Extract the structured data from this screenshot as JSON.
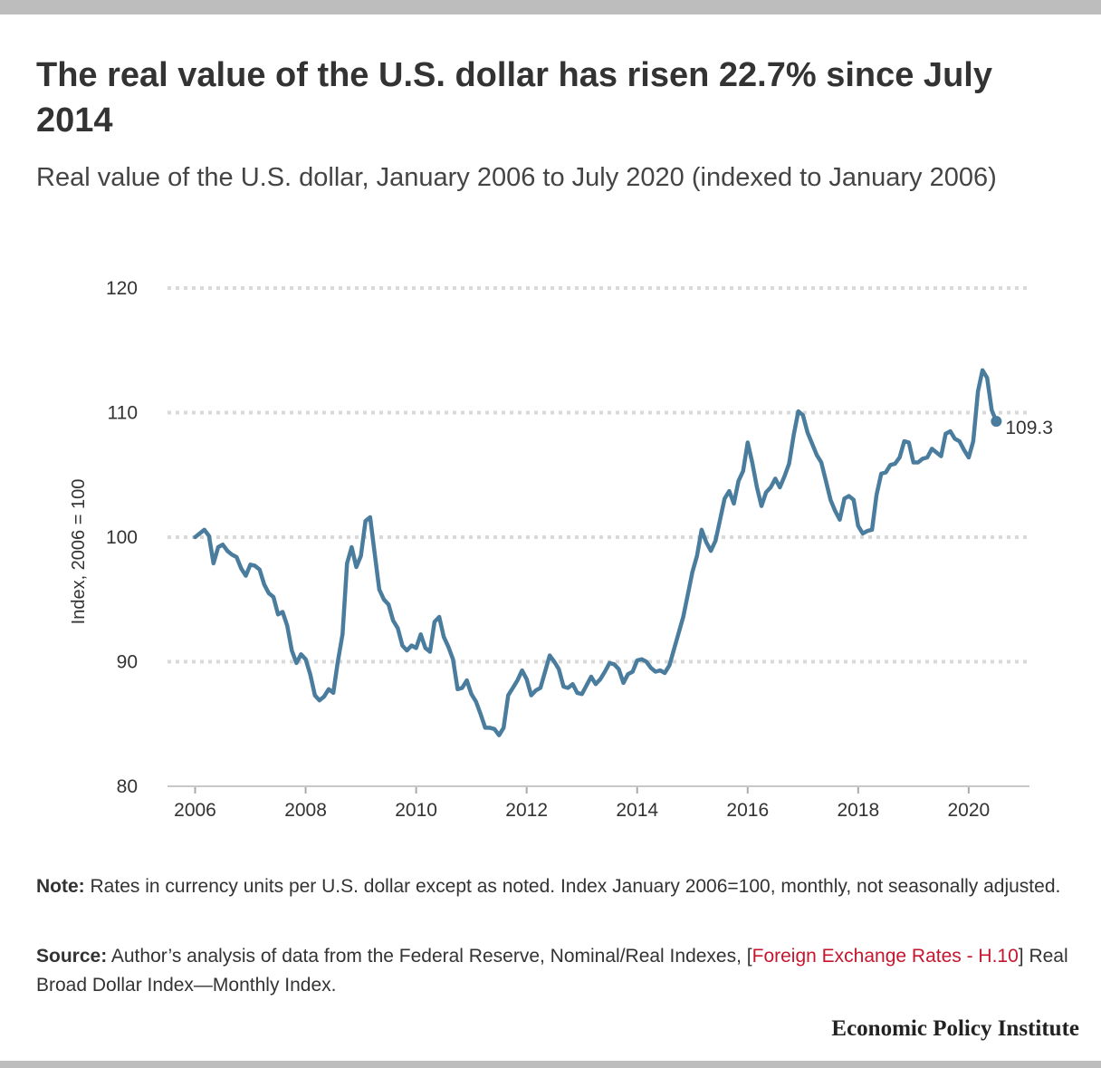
{
  "title": "The real value of the U.S. dollar has risen 22.7% since July 2014",
  "subtitle": "Real value of the U.S. dollar, January 2006 to July 2020 (indexed to January 2006)",
  "note": {
    "label": "Note:",
    "text": "Rates in currency units per U.S. dollar except as noted. Index January 2006=100, monthly, not seasonally adjusted."
  },
  "source": {
    "label": "Source:",
    "text_before": "Author’s analysis of data from the Federal Reserve, Nominal/Real Indexes, [",
    "link": "Foreign Exchange Rates - H.10",
    "text_after": "] Real Broad Dollar Index—Monthly Index."
  },
  "logo": "Economic Policy Institute",
  "colors": {
    "line": "#4a7c9e",
    "grid": "#d9d9d9",
    "link": "#c5162e"
  },
  "chart_data": {
    "type": "line",
    "ylabel": "Index, 2006 = 100",
    "xlabel": "",
    "ylim": [
      80,
      120
    ],
    "xlim": [
      2005.5,
      2021.1
    ],
    "yticks": [
      80,
      90,
      100,
      110,
      120
    ],
    "xticks": [
      2006,
      2008,
      2010,
      2012,
      2014,
      2016,
      2018,
      2020
    ],
    "grid": true,
    "end_label": "109.3",
    "series": [
      {
        "x": [
          2006.0,
          2006.083,
          2006.167,
          2006.25,
          2006.333,
          2006.417,
          2006.5,
          2006.583,
          2006.667,
          2006.75,
          2006.833,
          2006.917,
          2007.0,
          2007.083,
          2007.167,
          2007.25,
          2007.333,
          2007.417,
          2007.5,
          2007.583,
          2007.667,
          2007.75,
          2007.833,
          2007.917,
          2008.0,
          2008.083,
          2008.167,
          2008.25,
          2008.333,
          2008.417,
          2008.5,
          2008.583,
          2008.667,
          2008.75,
          2008.833,
          2008.917,
          2009.0,
          2009.083,
          2009.167,
          2009.25,
          2009.333,
          2009.417,
          2009.5,
          2009.583,
          2009.667,
          2009.75,
          2009.833,
          2009.917,
          2010.0,
          2010.083,
          2010.167,
          2010.25,
          2010.333,
          2010.417,
          2010.5,
          2010.583,
          2010.667,
          2010.75,
          2010.833,
          2010.917,
          2011.0,
          2011.083,
          2011.167,
          2011.25,
          2011.333,
          2011.417,
          2011.5,
          2011.583,
          2011.667,
          2011.75,
          2011.833,
          2011.917,
          2012.0,
          2012.083,
          2012.167,
          2012.25,
          2012.333,
          2012.417,
          2012.5,
          2012.583,
          2012.667,
          2012.75,
          2012.833,
          2012.917,
          2013.0,
          2013.083,
          2013.167,
          2013.25,
          2013.333,
          2013.417,
          2013.5,
          2013.583,
          2013.667,
          2013.75,
          2013.833,
          2013.917,
          2014.0,
          2014.083,
          2014.167,
          2014.25,
          2014.333,
          2014.417,
          2014.5,
          2014.583,
          2014.667,
          2014.75,
          2014.833,
          2014.917,
          2015.0,
          2015.083,
          2015.167,
          2015.25,
          2015.333,
          2015.417,
          2015.5,
          2015.583,
          2015.667,
          2015.75,
          2015.833,
          2015.917,
          2016.0,
          2016.083,
          2016.167,
          2016.25,
          2016.333,
          2016.417,
          2016.5,
          2016.583,
          2016.667,
          2016.75,
          2016.833,
          2016.917,
          2017.0,
          2017.083,
          2017.167,
          2017.25,
          2017.333,
          2017.417,
          2017.5,
          2017.583,
          2017.667,
          2017.75,
          2017.833,
          2017.917,
          2018.0,
          2018.083,
          2018.167,
          2018.25,
          2018.333,
          2018.417,
          2018.5,
          2018.583,
          2018.667,
          2018.75,
          2018.833,
          2018.917,
          2019.0,
          2019.083,
          2019.167,
          2019.25,
          2019.333,
          2019.417,
          2019.5,
          2019.583,
          2019.667,
          2019.75,
          2019.833,
          2019.917,
          2020.0,
          2020.083,
          2020.167,
          2020.25,
          2020.333,
          2020.417,
          2020.5
        ],
        "values": [
          100.0,
          100.3,
          100.6,
          100.1,
          97.9,
          99.2,
          99.4,
          98.9,
          98.6,
          98.4,
          97.5,
          96.9,
          97.8,
          97.7,
          97.4,
          96.2,
          95.5,
          95.2,
          93.8,
          94.0,
          92.9,
          90.9,
          89.9,
          90.6,
          90.2,
          89.0,
          87.3,
          86.9,
          87.2,
          87.8,
          87.5,
          90.0,
          92.2,
          97.9,
          99.2,
          97.6,
          98.5,
          101.3,
          101.6,
          98.7,
          95.8,
          95.0,
          94.6,
          93.3,
          92.7,
          91.3,
          90.9,
          91.3,
          91.1,
          92.2,
          91.1,
          90.8,
          93.2,
          93.6,
          92.0,
          91.2,
          90.2,
          87.8,
          87.9,
          88.5,
          87.4,
          86.8,
          85.8,
          84.7,
          84.7,
          84.6,
          84.1,
          84.7,
          87.3,
          87.9,
          88.5,
          89.3,
          88.6,
          87.3,
          87.7,
          87.9,
          89.2,
          90.5,
          90.0,
          89.4,
          88.0,
          87.9,
          88.2,
          87.5,
          87.4,
          88.1,
          88.8,
          88.2,
          88.6,
          89.2,
          89.9,
          89.8,
          89.4,
          88.3,
          89.0,
          89.2,
          90.1,
          90.2,
          90.0,
          89.5,
          89.2,
          89.3,
          89.1,
          89.7,
          91.0,
          92.3,
          93.6,
          95.4,
          97.2,
          98.5,
          100.6,
          99.6,
          98.9,
          99.7,
          101.4,
          103.1,
          103.7,
          102.7,
          104.5,
          105.3,
          107.6,
          106.0,
          104.0,
          102.5,
          103.6,
          104.0,
          104.7,
          104.0,
          104.9,
          105.9,
          108.2,
          110.1,
          109.8,
          108.4,
          107.5,
          106.6,
          106.0,
          104.5,
          103.0,
          102.1,
          101.4,
          103.1,
          103.3,
          103.0,
          100.9,
          100.3,
          100.5,
          100.6,
          103.4,
          105.1,
          105.2,
          105.8,
          105.9,
          106.4,
          107.7,
          107.6,
          106.0,
          106.0,
          106.3,
          106.4,
          107.1,
          106.8,
          106.5,
          108.3,
          108.5,
          107.9,
          107.7,
          107.0,
          106.4,
          107.7,
          111.7,
          113.4,
          112.8,
          110.2,
          109.3
        ]
      }
    ]
  }
}
